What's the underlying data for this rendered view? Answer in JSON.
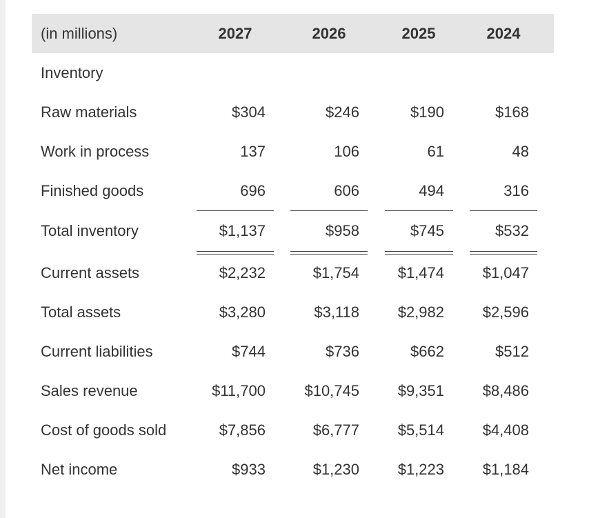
{
  "table": {
    "header": [
      "(in millions)",
      "2027",
      "2026",
      "2025",
      "2024"
    ],
    "rows": [
      [
        "Inventory"
      ],
      [
        "Raw materials",
        "$304",
        "$246",
        "$190",
        "$168"
      ],
      [
        "Work in process",
        "137",
        "106",
        "61",
        "48"
      ],
      [
        "Finished goods",
        "696",
        "606",
        "494",
        "316"
      ],
      [
        "Total inventory",
        "$1,137",
        "$958",
        "$745",
        "$532"
      ],
      [
        "Current assets",
        "$2,232",
        "$1,754",
        "$1,474",
        "$1,047"
      ],
      [
        "Total assets",
        "$3,280",
        "$3,118",
        "$2,982",
        "$2,596"
      ],
      [
        "Current liabilities",
        "$744",
        "$736",
        "$662",
        "$512"
      ],
      [
        "Sales revenue",
        "$11,700",
        "$10,745",
        "$9,351",
        "$8,486"
      ],
      [
        "Cost of goods sold",
        "$7,856",
        "$6,777",
        "$5,514",
        "$4,408"
      ],
      [
        "Net income",
        "$933",
        "$1,230",
        "$1,223",
        "$1,184"
      ]
    ]
  }
}
